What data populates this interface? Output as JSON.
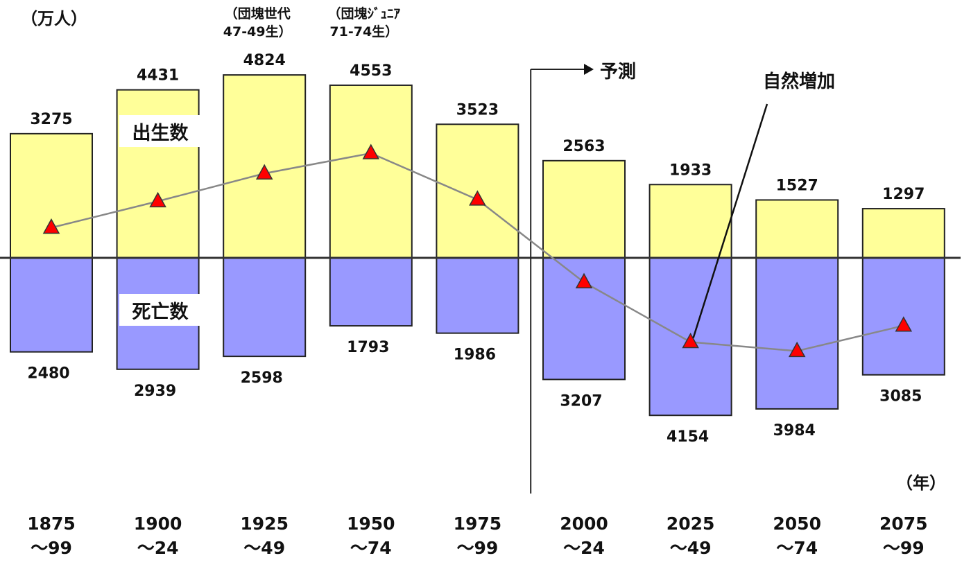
{
  "chart_data": {
    "type": "bar",
    "unit_label": "（万人）",
    "year_label": "（年）",
    "forecast_label": "予測",
    "natural_increase_label": "自然増加",
    "births_label": "出生数",
    "deaths_label": "死亡数",
    "categories": [
      [
        "1875",
        "～99"
      ],
      [
        "1900",
        "～24"
      ],
      [
        "1925",
        "～49"
      ],
      [
        "1950",
        "～74"
      ],
      [
        "1975",
        "～99"
      ],
      [
        "2000",
        "～24"
      ],
      [
        "2025",
        "～49"
      ],
      [
        "2050",
        "～74"
      ],
      [
        "2075",
        "～99"
      ]
    ],
    "annotations": [
      {
        "category_index": 2,
        "lines": [
          "（団塊世代",
          "47-49生）"
        ]
      },
      {
        "category_index": 3,
        "lines": [
          "（団塊ｼﾞｭﾆｱ",
          "71-74生）"
        ]
      }
    ],
    "forecast_start_index": 5,
    "series": [
      {
        "name": "出生数",
        "values": [
          3275,
          4431,
          4824,
          4553,
          3523,
          2563,
          1933,
          1527,
          1297
        ],
        "color": "#ffff99"
      },
      {
        "name": "死亡数",
        "values": [
          2480,
          2939,
          2598,
          1793,
          1986,
          3207,
          4154,
          3984,
          3085
        ],
        "color": "#9999ff"
      },
      {
        "name": "自然増加",
        "values": [
          795,
          1492,
          2226,
          2760,
          1537,
          -644,
          -2221,
          -2457,
          -1788
        ],
        "color": "#ff0000"
      }
    ]
  }
}
